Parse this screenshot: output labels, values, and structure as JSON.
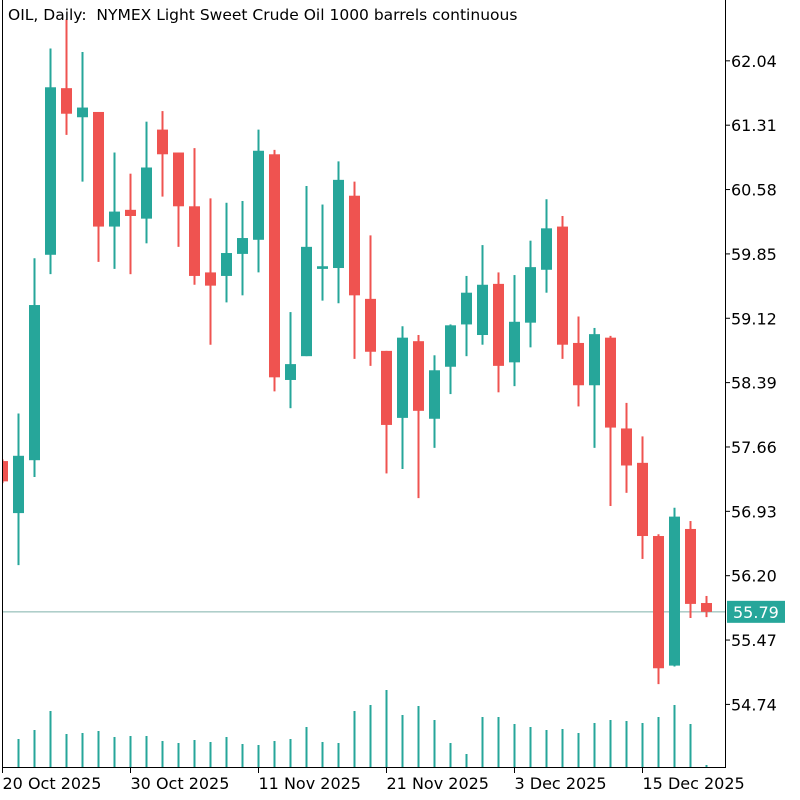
{
  "title": "OIL, Daily:  NYMEX Light Sweet Crude Oil 1000 barrels continuous",
  "colors": {
    "up": "#26a69a",
    "down": "#ef5350",
    "axis": "#000000",
    "current_line": "#7fb0aa"
  },
  "chart_data": {
    "type": "candlestick",
    "symbol": "OIL",
    "timeframe": "Daily",
    "title": "OIL, Daily:  NYMEX Light Sweet Crude Oil 1000 barrels continuous",
    "ylim": [
      54.03,
      62.73
    ],
    "y_ticks": [
      "62.04",
      "61.31",
      "60.58",
      "59.85",
      "59.12",
      "58.39",
      "57.66",
      "56.93",
      "56.20",
      "55.47",
      "54.74"
    ],
    "x_ticks": [
      {
        "label": "20 Oct 2025",
        "index": 0
      },
      {
        "label": "30 Oct 2025",
        "index": 8
      },
      {
        "label": "11 Nov 2025",
        "index": 16
      },
      {
        "label": "21 Nov 2025",
        "index": 24
      },
      {
        "label": "3 Dec 2025",
        "index": 32
      },
      {
        "label": "15 Dec 2025",
        "index": 40
      }
    ],
    "current_price": "55.79",
    "grid": false,
    "ohlc": [
      [
        57.5,
        57.52,
        57.25,
        57.27
      ],
      [
        56.91,
        58.04,
        56.32,
        57.56
      ],
      [
        57.51,
        59.8,
        57.32,
        59.27
      ],
      [
        59.84,
        62.18,
        59.62,
        61.74
      ],
      [
        61.73,
        62.51,
        61.2,
        61.44
      ],
      [
        61.4,
        62.14,
        60.67,
        61.51
      ],
      [
        61.46,
        61.46,
        59.76,
        60.16
      ],
      [
        60.16,
        61.0,
        59.68,
        60.33
      ],
      [
        60.35,
        60.76,
        59.62,
        60.28
      ],
      [
        60.25,
        61.35,
        59.97,
        60.83
      ],
      [
        61.26,
        61.47,
        60.5,
        60.98
      ],
      [
        61.0,
        61.0,
        59.93,
        60.39
      ],
      [
        60.39,
        61.05,
        59.5,
        59.6
      ],
      [
        59.64,
        60.48,
        58.82,
        59.49
      ],
      [
        59.6,
        60.43,
        59.3,
        59.86
      ],
      [
        59.85,
        60.45,
        59.38,
        60.03
      ],
      [
        60.01,
        61.26,
        59.64,
        61.02
      ],
      [
        60.98,
        61.03,
        58.29,
        58.45
      ],
      [
        58.42,
        59.19,
        58.1,
        58.6
      ],
      [
        58.69,
        60.62,
        58.69,
        59.93
      ],
      [
        59.68,
        60.41,
        59.32,
        59.71
      ],
      [
        59.69,
        60.9,
        59.29,
        60.69
      ],
      [
        60.51,
        60.67,
        58.66,
        59.38
      ],
      [
        59.34,
        60.06,
        58.58,
        58.74
      ],
      [
        58.75,
        58.75,
        57.36,
        57.91
      ],
      [
        57.99,
        59.03,
        57.41,
        58.9
      ],
      [
        58.86,
        58.93,
        57.08,
        58.07
      ],
      [
        57.98,
        58.7,
        57.65,
        58.53
      ],
      [
        58.57,
        59.05,
        58.26,
        59.04
      ],
      [
        59.05,
        59.6,
        58.69,
        59.41
      ],
      [
        58.93,
        59.95,
        58.82,
        59.5
      ],
      [
        59.51,
        59.64,
        58.28,
        58.58
      ],
      [
        58.62,
        59.61,
        58.35,
        59.08
      ],
      [
        59.07,
        60.0,
        58.79,
        59.7
      ],
      [
        59.67,
        60.47,
        59.41,
        60.14
      ],
      [
        60.16,
        60.28,
        58.66,
        58.82
      ],
      [
        58.84,
        59.14,
        58.12,
        58.36
      ],
      [
        58.36,
        59.01,
        57.65,
        58.94
      ],
      [
        58.9,
        58.92,
        56.99,
        57.88
      ],
      [
        57.87,
        58.16,
        57.14,
        57.45
      ],
      [
        57.48,
        57.78,
        56.39,
        56.65
      ],
      [
        56.65,
        56.67,
        54.97,
        55.15
      ],
      [
        55.18,
        56.97,
        55.17,
        56.87
      ],
      [
        56.73,
        56.82,
        55.72,
        55.88
      ],
      [
        55.89,
        55.97,
        55.73,
        55.79
      ]
    ],
    "volume": [
      0,
      28,
      37,
      56,
      33,
      34,
      36,
      30,
      31,
      31,
      26,
      24,
      27,
      25,
      30,
      23,
      22,
      26,
      28,
      40,
      25,
      24,
      56,
      62,
      77,
      52,
      61,
      47,
      24,
      13,
      50,
      50,
      43,
      40,
      37,
      38,
      34,
      44,
      47,
      46,
      44,
      50,
      62,
      43,
      2
    ]
  }
}
